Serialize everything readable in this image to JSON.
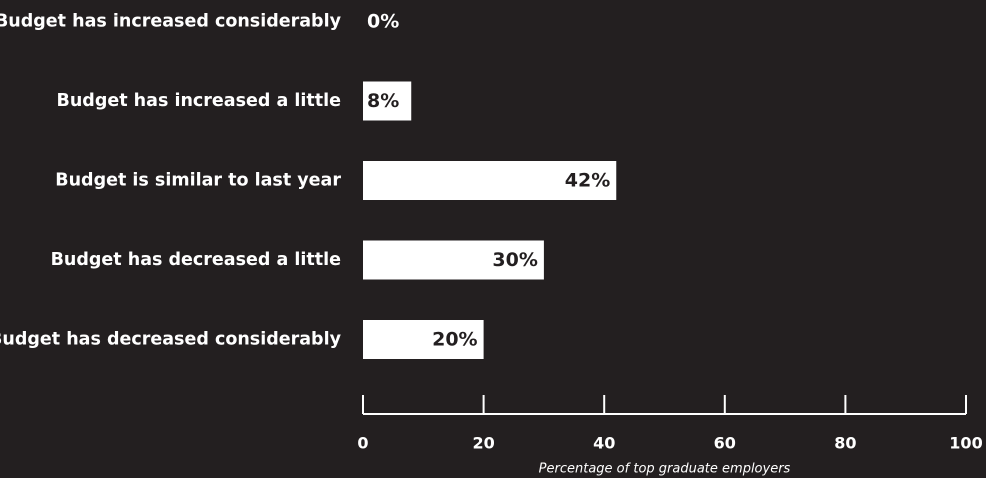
{
  "chart_data": {
    "type": "bar",
    "orientation": "horizontal",
    "categories": [
      "Budget has increased considerably",
      "Budget has increased a little",
      "Budget is similar to last year",
      "Budget has decreased a little",
      "Budget has decreased considerably"
    ],
    "values": [
      0,
      8,
      42,
      30,
      20
    ],
    "value_labels": [
      "0%",
      "8%",
      "42%",
      "30%",
      "20%"
    ],
    "xlabel": "Percentage of top graduate employers",
    "xlim": [
      0,
      100
    ],
    "xticks": [
      0,
      20,
      40,
      60,
      80,
      100
    ],
    "grid": false,
    "legend": "none",
    "colors": {
      "background": "#231f20",
      "bar": "#ffffff",
      "text": "#ffffff",
      "value_text_inside": "#231f20"
    }
  }
}
